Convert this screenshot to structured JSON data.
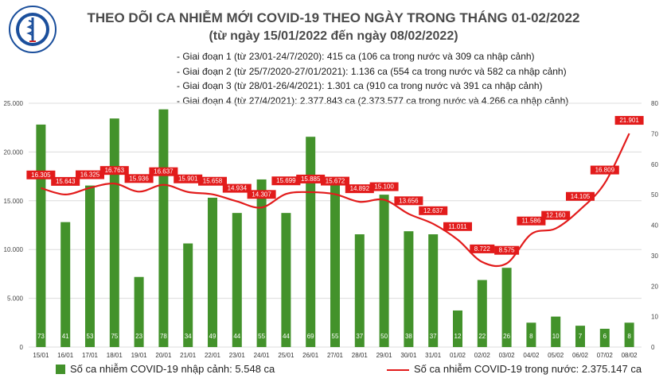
{
  "header": {
    "logo_text_top": "BỘ Y TẾ",
    "logo_text_bottom": "MINISTRY OF HEALTH",
    "title": "THEO DÕI CA NHIỄM MỚI COVID-19 THEO NGÀY TRONG THÁNG 01-02/2022",
    "subtitle": "(từ ngày 15/01/2022 đến ngày 08/02/2022)"
  },
  "notes": [
    "- Giai đoạn 1 (từ 23/01-24/7/2020): 415 ca (106 ca trong nước và 309 ca nhập cảnh)",
    "- Giai đoạn 2 (từ 25/7/2020-27/01/2021): 1.136 ca (554 ca trong nước và 582 ca nhập cảnh)",
    "- Giai đoạn 3 (từ 28/01-26/4/2021): 1.301 ca (910 ca trong nước và 391 ca nhập cảnh)",
    "- Giai đoạn 4 (từ 27/4/2021): 2.377.843 ca (2.373.577 ca trong nước và 4.266 ca nhập cảnh)"
  ],
  "colors": {
    "bar": "#43922b",
    "line": "#e21b1b",
    "grid": "#dcdcdc"
  },
  "chart_data": {
    "type": "bar",
    "categories": [
      "15/01",
      "16/01",
      "17/01",
      "18/01",
      "19/01",
      "20/01",
      "21/01",
      "22/01",
      "23/01",
      "24/01",
      "25/01",
      "26/01",
      "27/01",
      "28/01",
      "29/01",
      "30/01",
      "31/01",
      "01/02",
      "02/02",
      "03/02",
      "04/02",
      "05/02",
      "06/02",
      "07/02",
      "08/02"
    ],
    "series": [
      {
        "name": "Số ca nhiễm COVID-19 nhập cảnh: 5.548 ca",
        "type": "bar",
        "axis": "right",
        "values": [
          73,
          41,
          53,
          75,
          23,
          78,
          34,
          49,
          44,
          55,
          44,
          69,
          55,
          37,
          50,
          38,
          37,
          12,
          22,
          26,
          8,
          10,
          7,
          6,
          8
        ]
      },
      {
        "name": "Số ca nhiễm COVID-19 trong nước: 2.375.147 ca",
        "type": "line",
        "axis": "left",
        "values": [
          16305,
          15643,
          16325,
          16763,
          15936,
          16637,
          15901,
          15658,
          14934,
          14307,
          15699,
          15885,
          15672,
          14892,
          15100,
          13656,
          12637,
          11011,
          8722,
          8575,
          11586,
          12160,
          14105,
          16809,
          21901
        ],
        "labels": [
          "16.305",
          "15.643",
          "16.325",
          "16.763",
          "15.936",
          "16.637",
          "15.901",
          "15.658",
          "14.934",
          "14.307",
          "15.699",
          "15.885",
          "15.672",
          "14.892",
          "15.100",
          "13.656",
          "12.637",
          "11.011",
          "8.722",
          "8.575",
          "11.586",
          "12.160",
          "14.105",
          "16.809",
          "21.901"
        ]
      }
    ],
    "left_axis": {
      "min": 0,
      "max": 25000,
      "ticks": [
        "0",
        "5.000",
        "10.000",
        "15.000",
        "20.000",
        "25.000"
      ]
    },
    "right_axis": {
      "min": 0,
      "max": 80,
      "ticks": [
        "0",
        "10",
        "20",
        "30",
        "40",
        "50",
        "60",
        "70",
        "80"
      ]
    },
    "grid": true,
    "legend_position": "bottom"
  }
}
